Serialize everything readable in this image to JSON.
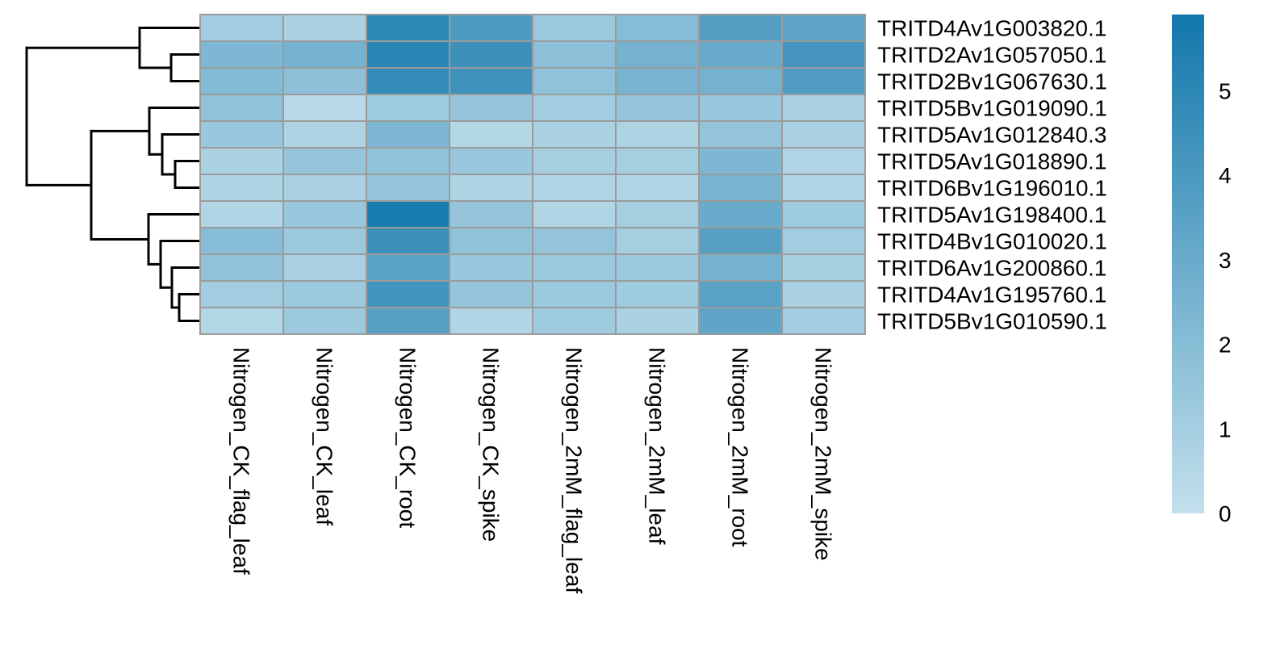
{
  "chart_data": {
    "type": "heatmap",
    "title": "",
    "xlabel": "",
    "ylabel": "",
    "columns": [
      "Nitrogen_CK_flag_leaf",
      "Nitrogen_CK_leaf",
      "Nitrogen_CK_root",
      "Nitrogen_CK_spike",
      "Nitrogen_2mM_flag_leaf",
      "Nitrogen_2mM_leaf",
      "Nitrogen_2mM_root",
      "Nitrogen_2mM_spike"
    ],
    "rows": [
      "TRITD4Av1G003820.1",
      "TRITD2Av1G057050.1",
      "TRITD2Bv1G067630.1",
      "TRITD5Bv1G019090.1",
      "TRITD5Av1G012840.3",
      "TRITD5Av1G018890.1",
      "TRITD6Bv1G196010.1",
      "TRITD5Av1G198400.1",
      "TRITD4Bv1G010020.1",
      "TRITD6Av1G200860.1",
      "TRITD4Av1G195760.1",
      "TRITD5Bv1G010590.1"
    ],
    "values": [
      [
        1.1,
        0.8,
        5.0,
        3.9,
        1.3,
        2.0,
        3.7,
        3.4
      ],
      [
        2.3,
        2.6,
        5.1,
        4.5,
        1.8,
        2.6,
        3.0,
        4.2
      ],
      [
        2.1,
        1.8,
        4.8,
        4.4,
        1.7,
        2.5,
        2.6,
        3.8
      ],
      [
        1.7,
        0.4,
        1.2,
        1.5,
        1.1,
        1.6,
        1.4,
        0.9
      ],
      [
        1.4,
        0.7,
        2.3,
        0.5,
        0.8,
        0.7,
        1.6,
        0.8
      ],
      [
        0.8,
        1.5,
        1.7,
        1.4,
        1.0,
        1.0,
        2.3,
        0.6
      ],
      [
        0.7,
        0.9,
        1.5,
        0.7,
        0.6,
        0.6,
        2.5,
        0.6
      ],
      [
        0.6,
        1.4,
        5.7,
        1.5,
        0.6,
        1.0,
        3.0,
        1.2
      ],
      [
        2.0,
        1.3,
        4.5,
        1.7,
        1.6,
        1.0,
        3.6,
        1.1
      ],
      [
        1.7,
        0.9,
        3.5,
        1.4,
        1.3,
        1.3,
        2.6,
        1.0
      ],
      [
        1.1,
        1.3,
        4.3,
        1.5,
        1.3,
        1.2,
        3.5,
        0.8
      ],
      [
        0.5,
        1.3,
        3.6,
        0.6,
        1.2,
        0.8,
        3.3,
        1.1
      ]
    ],
    "color_scale": {
      "range": [
        0,
        5.9
      ],
      "low_color": "#c3e0ec",
      "high_color": "#1277ab",
      "ticks": [
        0,
        1,
        2,
        3,
        4,
        5
      ]
    },
    "cell_border_color": "#9b9b9b",
    "row_dendrogram": "left",
    "legend_position": "right"
  }
}
